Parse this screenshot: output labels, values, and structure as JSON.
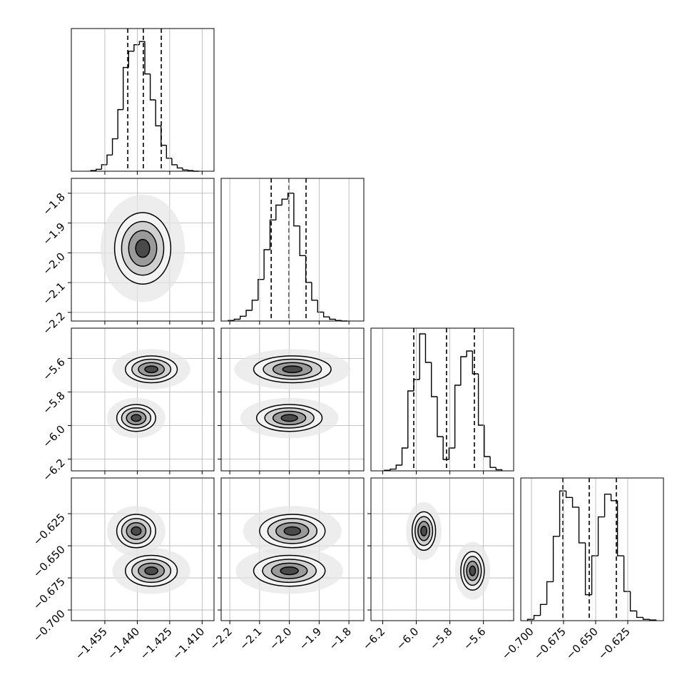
{
  "chart_data": {
    "type": "corner",
    "line_color": "#000000",
    "grid": true,
    "params": [
      {
        "lim": [
          -1.4705,
          -1.4045
        ],
        "ticks": [
          {
            "value": -1.455,
            "label": "−1.455"
          },
          {
            "value": -1.44,
            "label": "−1.440"
          },
          {
            "value": -1.425,
            "label": "−1.425"
          },
          {
            "value": -1.41,
            "label": "−1.410"
          }
        ]
      },
      {
        "lim": [
          -2.229,
          -1.75
        ],
        "ticks": [
          {
            "value": -2.2,
            "label": "−2.2"
          },
          {
            "value": -2.1,
            "label": "−2.1"
          },
          {
            "value": -2.0,
            "label": "−2.0"
          },
          {
            "value": -1.9,
            "label": "−1.9"
          },
          {
            "value": -1.8,
            "label": "−1.8"
          }
        ]
      },
      {
        "lim": [
          -6.27,
          -5.42
        ],
        "ticks": [
          {
            "value": -6.2,
            "label": "−6.2"
          },
          {
            "value": -6.0,
            "label": "−6.0"
          },
          {
            "value": -5.8,
            "label": "−5.8"
          },
          {
            "value": -5.6,
            "label": "−5.6"
          }
        ]
      },
      {
        "lim": [
          -0.7083,
          -0.5972
        ],
        "ticks": [
          {
            "value": -0.7,
            "label": "−0.700"
          },
          {
            "value": -0.675,
            "label": "−0.675"
          },
          {
            "value": -0.65,
            "label": "−0.650"
          },
          {
            "value": -0.625,
            "label": "−0.625"
          }
        ]
      }
    ],
    "histograms": [
      {
        "bins": [
          -1.4615,
          -1.459,
          -1.4565,
          -1.454,
          -1.4515,
          -1.449,
          -1.4465,
          -1.444,
          -1.4415,
          -1.439,
          -1.4365,
          -1.434,
          -1.4315,
          -1.429,
          -1.4265,
          -1.424,
          -1.4215,
          -1.419,
          -1.4165,
          -1.414,
          -1.4115
        ],
        "counts": [
          1,
          3,
          10,
          25,
          50,
          95,
          160,
          185,
          195,
          200,
          150,
          110,
          70,
          40,
          20,
          10,
          5,
          2,
          1,
          0
        ],
        "ylim": [
          0,
          220
        ],
        "quantiles": [
          -1.4444,
          -1.4372,
          -1.4289
        ]
      },
      {
        "bins": [
          -2.205,
          -2.185,
          -2.165,
          -2.145,
          -2.125,
          -2.105,
          -2.085,
          -2.065,
          -2.045,
          -2.025,
          -2.005,
          -1.985,
          -1.965,
          -1.945,
          -1.925,
          -1.905,
          -1.885,
          -1.865,
          -1.845,
          -1.825,
          -1.805
        ],
        "counts": [
          1,
          3,
          8,
          18,
          35,
          70,
          120,
          170,
          195,
          205,
          215,
          160,
          110,
          65,
          35,
          15,
          7,
          3,
          1,
          0
        ],
        "ylim": [
          0,
          240
        ],
        "quantiles": [
          -2.061,
          -2.001,
          -1.944
        ]
      },
      {
        "bins": [
          -6.19,
          -6.155,
          -6.12,
          -6.085,
          -6.05,
          -6.015,
          -5.98,
          -5.945,
          -5.91,
          -5.875,
          -5.84,
          -5.805,
          -5.77,
          -5.735,
          -5.7,
          -5.665,
          -5.63,
          -5.595,
          -5.56,
          -5.525,
          -5.49
        ],
        "counts": [
          1,
          3,
          10,
          40,
          140,
          160,
          240,
          190,
          130,
          60,
          20,
          40,
          150,
          200,
          210,
          170,
          80,
          25,
          6,
          2
        ],
        "ylim": [
          0,
          250
        ],
        "quantiles": [
          -6.015,
          -5.82,
          -5.654
        ]
      },
      {
        "bins": [
          -0.703,
          -0.698,
          -0.693,
          -0.688,
          -0.683,
          -0.678,
          -0.673,
          -0.668,
          -0.663,
          -0.658,
          -0.653,
          -0.648,
          -0.643,
          -0.638,
          -0.633,
          -0.628,
          -0.623,
          -0.618,
          -0.613,
          -0.608,
          -0.603
        ],
        "counts": [
          2,
          8,
          25,
          60,
          130,
          200,
          190,
          175,
          120,
          40,
          100,
          160,
          195,
          185,
          100,
          45,
          15,
          5,
          2,
          1
        ],
        "ylim": [
          0,
          220
        ],
        "quantiles": [
          -0.6755,
          -0.655,
          -0.6339
        ]
      }
    ],
    "panels": [
      {
        "modes": [
          {
            "x": -1.4375,
            "y": -1.985,
            "sx": 0.0065,
            "sy": 0.06
          }
        ]
      },
      {
        "modes": [
          {
            "x": -1.4405,
            "y": -5.955,
            "sx": 0.0045,
            "sy": 0.04
          },
          {
            "x": -1.4335,
            "y": -5.665,
            "sx": 0.006,
            "sy": 0.04
          }
        ]
      },
      {
        "modes": [
          {
            "x": -2.0,
            "y": -5.955,
            "sx": 0.055,
            "sy": 0.04
          },
          {
            "x": -1.99,
            "y": -5.665,
            "sx": 0.065,
            "sy": 0.04
          }
        ]
      },
      {
        "modes": [
          {
            "x": -1.4405,
            "y": -0.6385,
            "sx": 0.0045,
            "sy": 0.0065
          },
          {
            "x": -1.4335,
            "y": -0.6695,
            "sx": 0.006,
            "sy": 0.006
          }
        ]
      },
      {
        "modes": [
          {
            "x": -1.99,
            "y": -0.6385,
            "sx": 0.055,
            "sy": 0.0065
          },
          {
            "x": -2.0,
            "y": -0.6695,
            "sx": 0.06,
            "sy": 0.006
          }
        ]
      },
      {
        "modes": [
          {
            "x": -5.955,
            "y": -0.6385,
            "sx": 0.035,
            "sy": 0.0075
          },
          {
            "x": -5.665,
            "y": -0.6695,
            "sx": 0.035,
            "sy": 0.0075
          }
        ]
      }
    ]
  }
}
